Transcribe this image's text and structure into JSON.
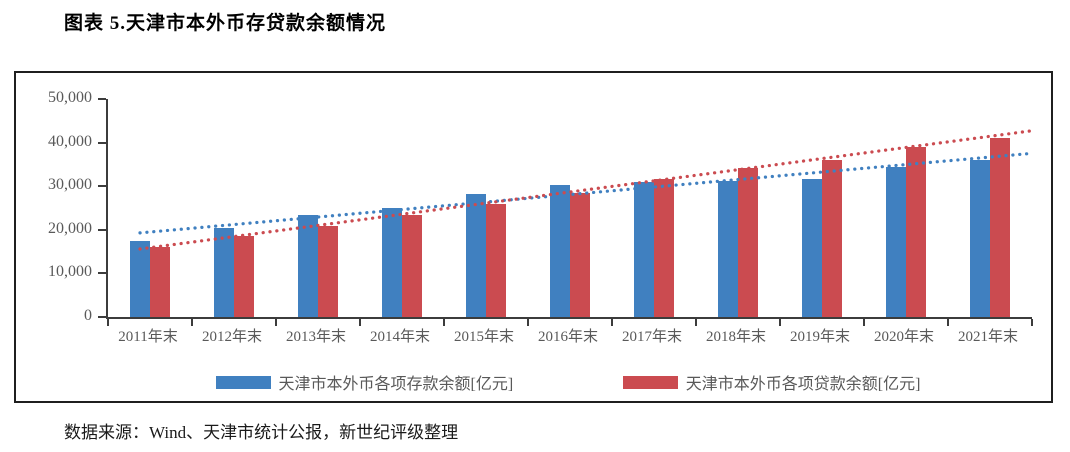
{
  "page": {
    "title": "图表 5.天津市本外币存贷款余额情况",
    "source": "数据来源：Wind、天津市统计公报，新世纪评级整理"
  },
  "chart_data": {
    "type": "bar",
    "title": "图表 5.天津市本外币存贷款余额情况",
    "categories": [
      "2011年末",
      "2012年末",
      "2013年末",
      "2014年末",
      "2015年末",
      "2016年末",
      "2017年末",
      "2018年末",
      "2019年末",
      "2020年末",
      "2021年末"
    ],
    "series": [
      {
        "key": "deposits",
        "name": "天津市本外币各项存款余额[亿元]",
        "color": "#4080C0",
        "values": [
          17500,
          20400,
          23400,
          24900,
          28200,
          30300,
          30900,
          31200,
          31700,
          34400,
          36100
        ],
        "trendline": "linear-dotted"
      },
      {
        "key": "loans",
        "name": "天津市本外币各项贷款余额[亿元]",
        "color": "#CB4B50",
        "values": [
          16000,
          18500,
          20900,
          23300,
          26000,
          28500,
          31700,
          34300,
          36100,
          39000,
          41100
        ],
        "trendline": "linear-dotted"
      }
    ],
    "ylim": [
      0,
      50000
    ],
    "ytick_values": [
      0,
      10000,
      20000,
      30000,
      40000,
      50000
    ],
    "ytick_labels": [
      "0",
      "10,000",
      "20,000",
      "30,000",
      "40,000",
      "50,000"
    ],
    "grid": false,
    "legend_position": "bottom"
  }
}
